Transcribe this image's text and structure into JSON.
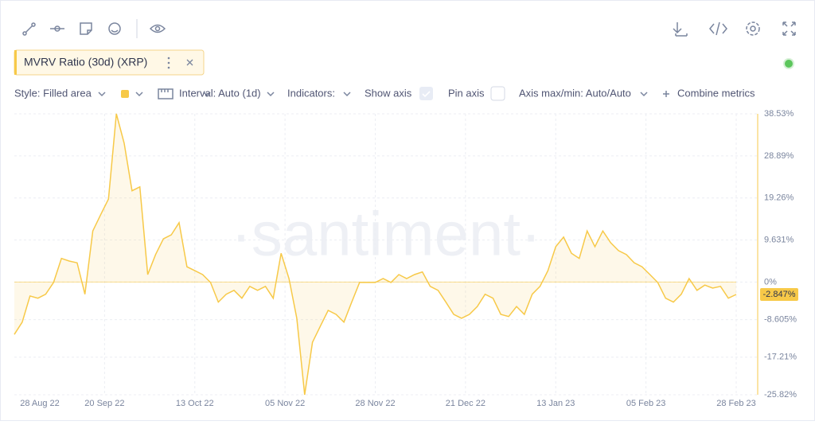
{
  "controls": {
    "style": "Style: Filled area",
    "interval": "Interval: Auto (1d)",
    "indicators": "Indicators:",
    "show_axis": "Show axis",
    "pin_axis": "Pin axis",
    "axis_minmax": "Axis max/min: Auto/Auto",
    "combine": "Combine metrics"
  },
  "chart_data": {
    "type": "area",
    "watermark": "·santiment·",
    "x": [
      "28 Aug 22",
      "30 Aug 22",
      "1 Sep 22",
      "3 Sep 22",
      "5 Sep 22",
      "7 Sep 22",
      "9 Sep 22",
      "11 Sep 22",
      "13 Sep 22",
      "15 Sep 22",
      "17 Sep 22",
      "19 Sep 22",
      "21 Sep 22",
      "23 Sep 22",
      "25 Sep 22",
      "27 Sep 22",
      "29 Sep 22",
      "1 Oct 22",
      "3 Oct 22",
      "5 Oct 22",
      "7 Oct 22",
      "9 Oct 22",
      "11 Oct 22",
      "13 Oct 22",
      "15 Oct 22",
      "17 Oct 22",
      "19 Oct 22",
      "21 Oct 22",
      "23 Oct 22",
      "25 Oct 22",
      "27 Oct 22",
      "29 Oct 22",
      "31 Oct 22",
      "2 Nov 22",
      "4 Nov 22",
      "6 Nov 22",
      "8 Nov 22",
      "10 Nov 22",
      "12 Nov 22",
      "14 Nov 22",
      "16 Nov 22",
      "18 Nov 22",
      "20 Nov 22",
      "22 Nov 22",
      "24 Nov 22",
      "26 Nov 22",
      "28 Nov 22",
      "30 Nov 22",
      "2 Dec 22",
      "4 Dec 22",
      "6 Dec 22",
      "8 Dec 22",
      "10 Dec 22",
      "12 Dec 22",
      "14 Dec 22",
      "16 Dec 22",
      "18 Dec 22",
      "20 Dec 22",
      "22 Dec 22",
      "24 Dec 22",
      "26 Dec 22",
      "28 Dec 22",
      "30 Dec 22",
      "1 Jan 23",
      "3 Jan 23",
      "5 Jan 23",
      "7 Jan 23",
      "9 Jan 23",
      "11 Jan 23",
      "13 Jan 23",
      "15 Jan 23",
      "17 Jan 23",
      "19 Jan 23",
      "21 Jan 23",
      "23 Jan 23",
      "25 Jan 23",
      "27 Jan 23",
      "29 Jan 23",
      "31 Jan 23",
      "2 Feb 23",
      "4 Feb 23",
      "6 Feb 23",
      "8 Feb 23",
      "10 Feb 23",
      "12 Feb 23",
      "14 Feb 23",
      "16 Feb 23",
      "18 Feb 23",
      "20 Feb 23",
      "22 Feb 23",
      "24 Feb 23",
      "26 Feb 23",
      "28 Feb 23"
    ],
    "series": [
      {
        "name": "MVRV Ratio (30d) (XRP)",
        "color": "#f7c948",
        "values": [
          -12,
          -9.2,
          -3.2,
          -3.7,
          -2.8,
          -0.1,
          5.4,
          4.8,
          4.4,
          -2.8,
          11.7,
          15.4,
          19,
          38.53,
          31.8,
          20.9,
          21.8,
          1.7,
          6.3,
          9.9,
          10.8,
          13.6,
          3.5,
          2.6,
          1.7,
          -0.1,
          -4.6,
          -2.8,
          -1.9,
          -3.7,
          -1,
          -1.9,
          -1,
          -3.7,
          6.6,
          0.8,
          -8.3,
          -25.82,
          -13.8,
          -10.1,
          -6.5,
          -7.4,
          -9.2,
          -4.6,
          -0.1,
          -0.1,
          -0.1,
          0.8,
          -0.1,
          1.7,
          0.8,
          1.7,
          2.3,
          -1,
          -1.9,
          -4.6,
          -7.4,
          -8.3,
          -7.4,
          -5.6,
          -2.8,
          -3.7,
          -7.4,
          -7.9,
          -5.6,
          -7.4,
          -2.8,
          -1,
          2.6,
          8.1,
          10.3,
          6.6,
          5.4,
          11.7,
          8.1,
          11.7,
          9,
          7.2,
          6.3,
          4.4,
          3.5,
          1.7,
          -0.1,
          -3.7,
          -4.6,
          -2.8,
          0.8,
          -1.9,
          -0.7,
          -1.4,
          -1,
          -3.7,
          -2.847
        ],
        "value_labels": [
          null,
          null,
          null,
          null,
          null,
          null,
          null,
          null,
          null,
          null,
          null,
          null,
          null,
          null,
          null,
          null,
          null,
          null,
          null,
          null,
          null,
          null,
          null,
          null,
          null,
          null,
          null,
          null,
          null,
          null,
          null,
          null,
          null,
          null,
          null,
          null,
          null,
          null,
          null,
          null,
          null,
          null,
          null,
          null,
          null,
          null,
          null,
          null,
          null,
          null,
          null,
          null,
          null,
          null,
          null,
          null,
          null,
          null,
          null,
          null,
          null,
          null,
          null,
          null,
          null,
          null,
          null,
          null,
          null,
          null,
          null,
          null,
          null,
          null,
          null,
          null,
          null,
          null,
          null,
          null,
          null,
          null,
          null,
          null,
          null,
          null,
          null,
          null,
          null,
          null,
          null,
          null,
          "-2.847%"
        ]
      }
    ],
    "xticks": [
      "28 Aug 22",
      "20 Sep 22",
      "13 Oct 22",
      "05 Nov 22",
      "28 Nov 22",
      "21 Dec 22",
      "13 Jan 23",
      "05 Feb 23",
      "28 Feb 23"
    ],
    "ylim": [
      -25.82,
      38.53
    ],
    "yticks": [
      {
        "value": 38.53,
        "label": "38.53%"
      },
      {
        "value": 28.89,
        "label": "28.89%"
      },
      {
        "value": 19.26,
        "label": "19.26%"
      },
      {
        "value": 9.631,
        "label": "9.631%"
      },
      {
        "value": 0,
        "label": "0%"
      },
      {
        "value": -8.605,
        "label": "-8.605%"
      },
      {
        "value": -17.21,
        "label": "-17.21%"
      },
      {
        "value": -25.82,
        "label": "-25.82%"
      }
    ],
    "grid": true
  }
}
